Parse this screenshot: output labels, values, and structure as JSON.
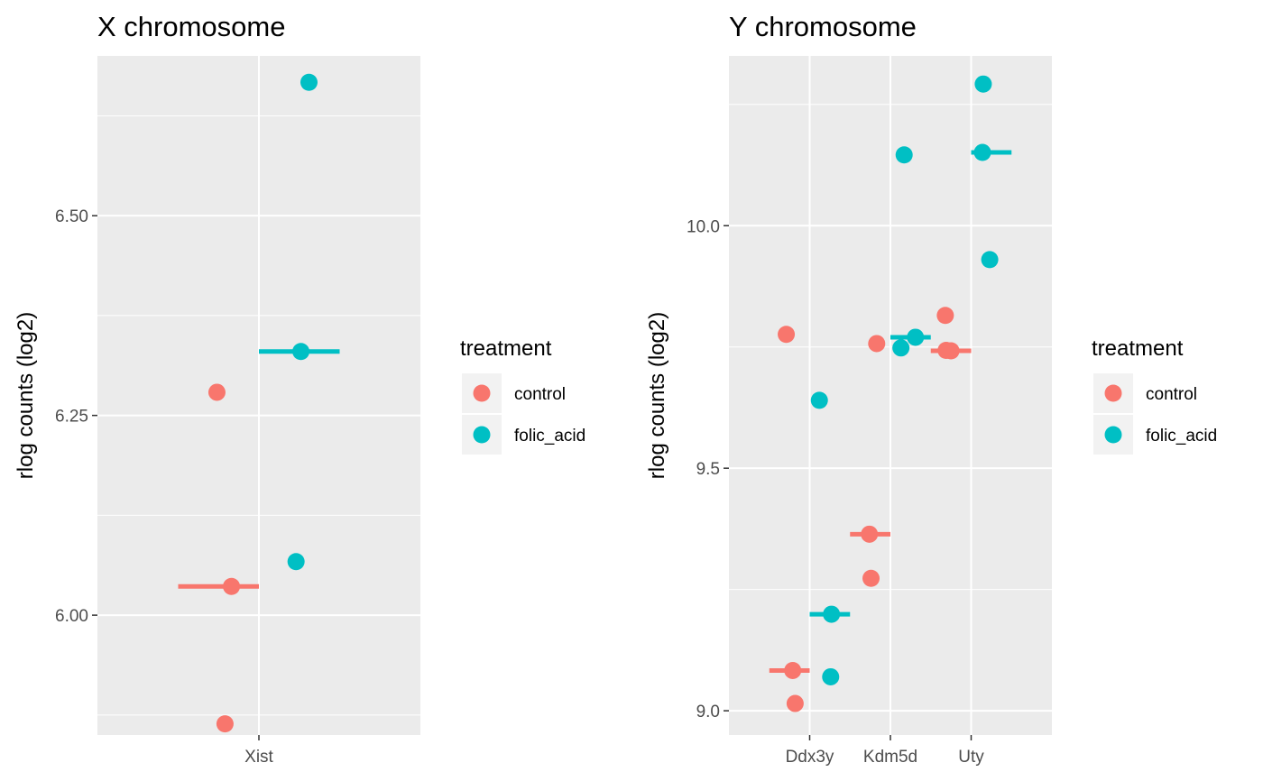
{
  "chart_data": [
    {
      "type": "scatter",
      "title": "X chromosome",
      "xlabel": "",
      "ylabel": "rlog counts (log2)",
      "categories": [
        "Xist"
      ],
      "ylim": [
        5.85,
        6.7
      ],
      "y_ticks": [
        "6.00",
        "6.25",
        "6.50"
      ],
      "legend": {
        "title": "treatment",
        "position": "right",
        "entries": [
          "control",
          "folic_acid"
        ]
      },
      "grid": true,
      "series": [
        {
          "name": "control",
          "color": "#F8766D",
          "points": [
            {
              "category": "Xist",
              "jitter": -0.26,
              "y": 6.279
            },
            {
              "category": "Xist",
              "jitter": -0.17,
              "y": 6.036
            },
            {
              "category": "Xist",
              "jitter": -0.21,
              "y": 5.864
            }
          ],
          "means": [
            {
              "category": "Xist",
              "y": 6.036
            }
          ]
        },
        {
          "name": "folic_acid",
          "color": "#00BFC4",
          "points": [
            {
              "category": "Xist",
              "jitter": 0.31,
              "y": 6.667
            },
            {
              "category": "Xist",
              "jitter": 0.26,
              "y": 6.33
            },
            {
              "category": "Xist",
              "jitter": 0.23,
              "y": 6.067
            }
          ],
          "means": [
            {
              "category": "Xist",
              "y": 6.33
            }
          ]
        }
      ]
    },
    {
      "type": "scatter",
      "title": "Y chromosome",
      "xlabel": "",
      "ylabel": "rlog counts (log2)",
      "categories": [
        "Ddx3y",
        "Kdm5d",
        "Uty"
      ],
      "ylim": [
        8.95,
        10.35
      ],
      "y_ticks": [
        "9.0",
        "9.5",
        "10.0"
      ],
      "legend": {
        "title": "treatment",
        "position": "right",
        "entries": [
          "control",
          "folic_acid"
        ]
      },
      "grid": true,
      "series": [
        {
          "name": "control",
          "color": "#F8766D",
          "points": [
            {
              "category": "Ddx3y",
              "jitter": -0.29,
              "y": 9.776
            },
            {
              "category": "Ddx3y",
              "jitter": -0.21,
              "y": 9.083
            },
            {
              "category": "Ddx3y",
              "jitter": -0.18,
              "y": 9.015
            },
            {
              "category": "Kdm5d",
              "jitter": -0.17,
              "y": 9.757
            },
            {
              "category": "Kdm5d",
              "jitter": -0.26,
              "y": 9.364
            },
            {
              "category": "Kdm5d",
              "jitter": -0.24,
              "y": 9.273
            },
            {
              "category": "Uty",
              "jitter": -0.32,
              "y": 9.815
            },
            {
              "category": "Uty",
              "jitter": -0.31,
              "y": 9.743
            },
            {
              "category": "Uty",
              "jitter": -0.25,
              "y": 9.742
            }
          ],
          "means": [
            {
              "category": "Ddx3y",
              "y": 9.083
            },
            {
              "category": "Kdm5d",
              "y": 9.364
            },
            {
              "category": "Uty",
              "y": 9.742
            }
          ]
        },
        {
          "name": "folic_acid",
          "color": "#00BFC4",
          "points": [
            {
              "category": "Ddx3y",
              "jitter": 0.12,
              "y": 9.64
            },
            {
              "category": "Ddx3y",
              "jitter": 0.27,
              "y": 9.199
            },
            {
              "category": "Ddx3y",
              "jitter": 0.26,
              "y": 9.07
            },
            {
              "category": "Kdm5d",
              "jitter": 0.17,
              "y": 10.146
            },
            {
              "category": "Kdm5d",
              "jitter": 0.31,
              "y": 9.77
            },
            {
              "category": "Kdm5d",
              "jitter": 0.13,
              "y": 9.748
            },
            {
              "category": "Uty",
              "jitter": 0.15,
              "y": 10.292
            },
            {
              "category": "Uty",
              "jitter": 0.14,
              "y": 10.151
            },
            {
              "category": "Uty",
              "jitter": 0.23,
              "y": 9.93
            }
          ],
          "means": [
            {
              "category": "Ddx3y",
              "y": 9.199
            },
            {
              "category": "Kdm5d",
              "y": 9.77
            },
            {
              "category": "Uty",
              "y": 10.151
            }
          ]
        }
      ]
    }
  ]
}
